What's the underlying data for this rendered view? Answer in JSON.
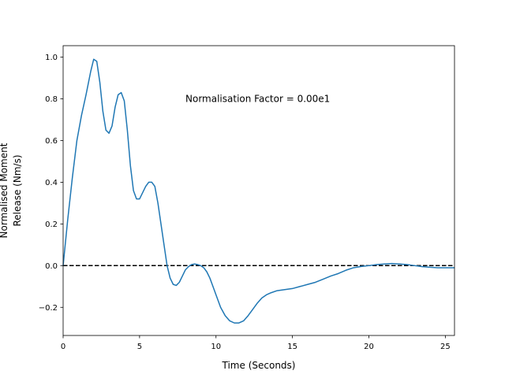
{
  "chart_data": {
    "type": "line",
    "title": "",
    "xlabel": "Time (Seconds)",
    "ylabel_lines": [
      "Normalised Moment",
      "Release (Nm/s)"
    ],
    "xlim": [
      0,
      25.6
    ],
    "ylim": [
      -0.335,
      1.055
    ],
    "xticks": [
      0,
      5,
      10,
      15,
      20,
      25
    ],
    "xtick_labels": [
      "0",
      "5",
      "10",
      "15",
      "20",
      "25"
    ],
    "yticks": [
      -0.2,
      0.0,
      0.2,
      0.4,
      0.6,
      0.8,
      1.0
    ],
    "ytick_labels": [
      "−0.2",
      "0.0",
      "0.2",
      "0.4",
      "0.6",
      "0.8",
      "1.0"
    ],
    "grid": false,
    "annotation": {
      "text": "Normalisation Factor = 0.00e1",
      "x": 8.0,
      "y": 0.8
    },
    "reference_line": {
      "y": 0.0,
      "style": "dashed",
      "color": "#000000"
    },
    "series": [
      {
        "color": "#1f77b4",
        "x": [
          0,
          0.3,
          0.6,
          0.9,
          1.2,
          1.5,
          1.8,
          2.0,
          2.2,
          2.4,
          2.6,
          2.8,
          3.0,
          3.2,
          3.4,
          3.6,
          3.8,
          4.0,
          4.2,
          4.4,
          4.6,
          4.8,
          5.0,
          5.2,
          5.4,
          5.6,
          5.8,
          6.0,
          6.2,
          6.4,
          6.6,
          6.8,
          7.0,
          7.2,
          7.4,
          7.6,
          7.8,
          8.0,
          8.2,
          8.4,
          8.6,
          8.8,
          9.0,
          9.2,
          9.4,
          9.6,
          9.8,
          10.0,
          10.3,
          10.6,
          10.9,
          11.2,
          11.5,
          11.8,
          12.1,
          12.4,
          12.7,
          13.0,
          13.3,
          13.6,
          14.0,
          14.5,
          15.0,
          15.5,
          16.0,
          16.5,
          17.0,
          17.5,
          18.0,
          18.5,
          19.0,
          19.5,
          20.0,
          20.5,
          21.0,
          21.5,
          22.0,
          22.5,
          23.0,
          23.5,
          24.0,
          24.5,
          25.0,
          25.6
        ],
        "y": [
          0.0,
          0.22,
          0.42,
          0.6,
          0.72,
          0.82,
          0.93,
          0.99,
          0.98,
          0.88,
          0.74,
          0.65,
          0.635,
          0.67,
          0.76,
          0.82,
          0.83,
          0.79,
          0.65,
          0.48,
          0.36,
          0.32,
          0.32,
          0.35,
          0.38,
          0.4,
          0.4,
          0.38,
          0.3,
          0.2,
          0.1,
          0.0,
          -0.06,
          -0.09,
          -0.095,
          -0.08,
          -0.05,
          -0.02,
          -0.005,
          0.005,
          0.008,
          0.005,
          0.0,
          -0.01,
          -0.03,
          -0.06,
          -0.1,
          -0.14,
          -0.2,
          -0.24,
          -0.265,
          -0.275,
          -0.275,
          -0.265,
          -0.24,
          -0.21,
          -0.18,
          -0.155,
          -0.14,
          -0.13,
          -0.12,
          -0.115,
          -0.11,
          -0.1,
          -0.09,
          -0.08,
          -0.065,
          -0.05,
          -0.038,
          -0.022,
          -0.01,
          -0.004,
          0.0,
          0.005,
          0.008,
          0.01,
          0.008,
          0.005,
          0.0,
          -0.005,
          -0.008,
          -0.01,
          -0.01,
          -0.01
        ]
      }
    ]
  }
}
